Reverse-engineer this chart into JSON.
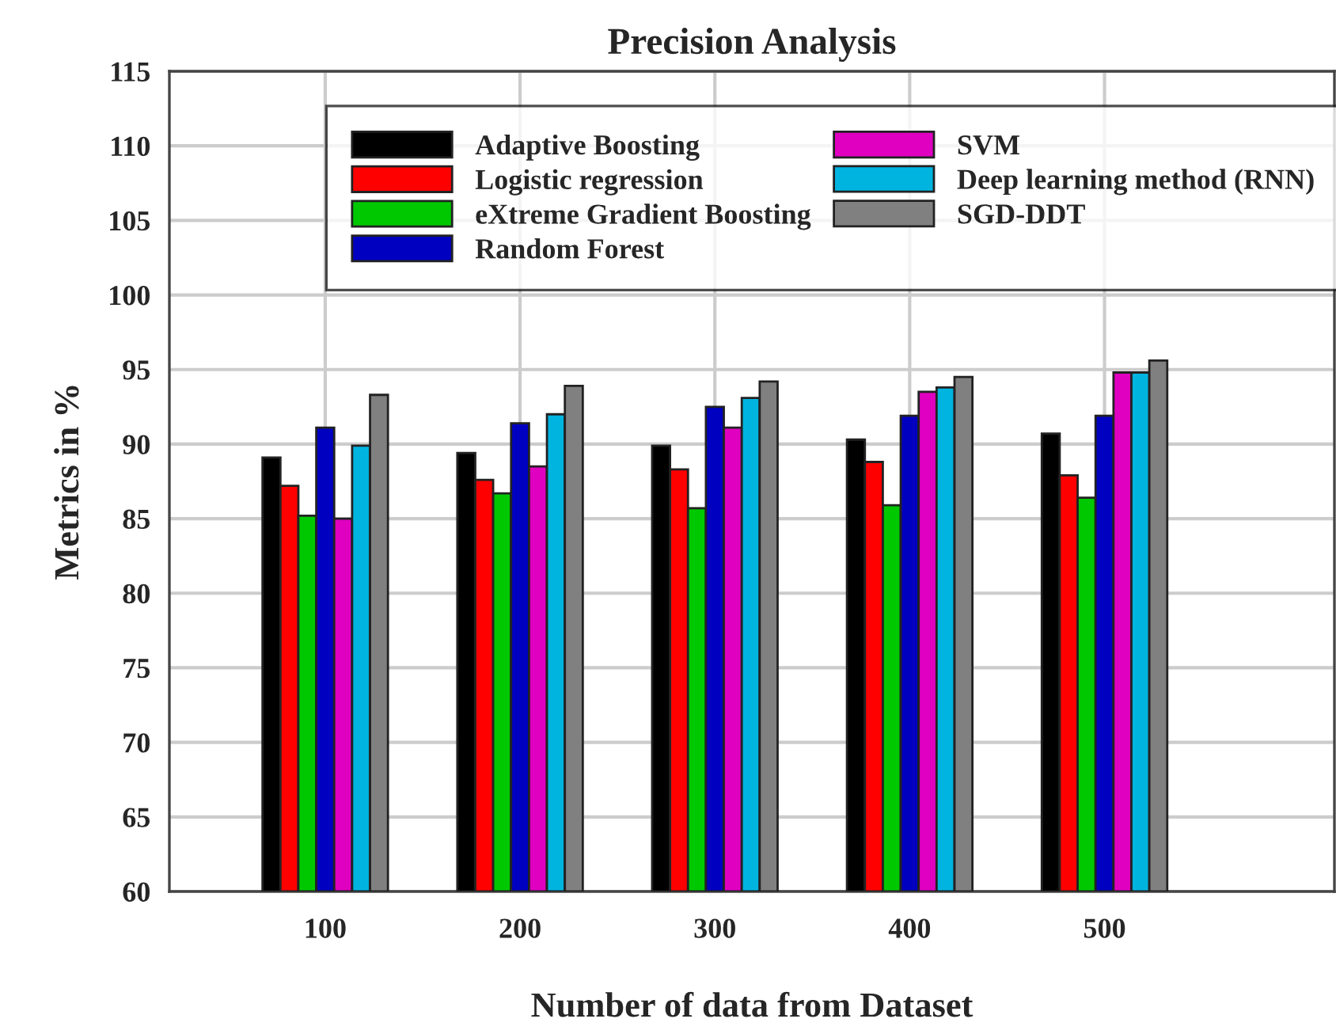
{
  "chart_data": {
    "type": "bar",
    "title": "Precision Analysis",
    "xlabel": "Number of data from Dataset",
    "ylabel": "Metrics in %",
    "categories": [
      "100",
      "200",
      "300",
      "400",
      "500"
    ],
    "series": [
      {
        "name": "Adaptive Boosting",
        "color": "#000000",
        "values": [
          89.1,
          89.4,
          89.9,
          90.3,
          90.7
        ]
      },
      {
        "name": "Logistic regression",
        "color": "#ff0000",
        "values": [
          87.2,
          87.6,
          88.3,
          88.8,
          87.9
        ]
      },
      {
        "name": "eXtreme Gradient Boosting",
        "color": "#00c800",
        "values": [
          85.2,
          86.7,
          85.7,
          85.9,
          86.4
        ]
      },
      {
        "name": "Random Forest",
        "color": "#0000c0",
        "values": [
          91.1,
          91.4,
          92.5,
          91.9,
          91.9
        ]
      },
      {
        "name": "SVM",
        "color": "#e000c0",
        "values": [
          85.0,
          88.5,
          91.1,
          93.5,
          94.8
        ]
      },
      {
        "name": "Deep learning method (RNN)",
        "color": "#00b4e0",
        "values": [
          89.9,
          92.0,
          93.1,
          93.8,
          94.8
        ]
      },
      {
        "name": "SGD-DDT",
        "color": "#808080",
        "values": [
          93.3,
          93.9,
          94.2,
          94.5,
          95.6
        ]
      }
    ],
    "ylim": [
      60,
      115
    ],
    "yticks": [
      60,
      65,
      70,
      75,
      80,
      85,
      90,
      95,
      100,
      105,
      110,
      115
    ],
    "grid": true,
    "legend": "top"
  }
}
